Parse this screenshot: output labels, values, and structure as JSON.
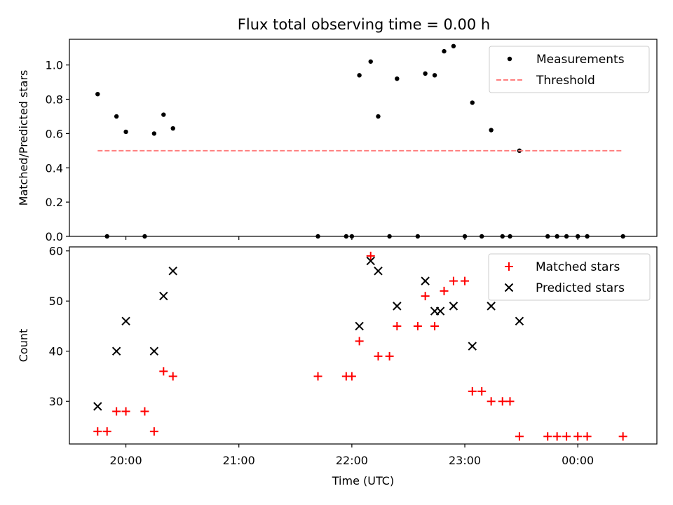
{
  "chart_data": {
    "title": "Flux total observing time = 0.00 h",
    "xlabel": "Time (UTC)",
    "x_tick_labels": [
      "20:00",
      "21:00",
      "22:00",
      "23:00",
      "00:00"
    ],
    "colors": {
      "measurements": "#000000",
      "threshold": "#ff7f7f",
      "matched": "#ff0000",
      "predicted": "#000000"
    },
    "panels": [
      {
        "type": "scatter",
        "ylabel": "Matched/Predicted stars",
        "ylim": [
          0.0,
          1.15
        ],
        "y_ticks": [
          0.0,
          0.2,
          0.4,
          0.6,
          0.8,
          1.0
        ],
        "y_tick_labels": [
          "0.0",
          "0.2",
          "0.4",
          "0.6",
          "0.8",
          "1.0"
        ],
        "legend_position": "upper right",
        "series": [
          {
            "name": "Measurements",
            "marker": "dot",
            "color": "#000000",
            "points": [
              [
                "19:45",
                0.83
              ],
              [
                "19:50",
                0.0
              ],
              [
                "19:55",
                0.7
              ],
              [
                "20:00",
                0.61
              ],
              [
                "20:10",
                0.0
              ],
              [
                "20:15",
                0.6
              ],
              [
                "20:20",
                0.71
              ],
              [
                "20:25",
                0.63
              ],
              [
                "21:42",
                0.0
              ],
              [
                "21:57",
                0.0
              ],
              [
                "22:00",
                0.0
              ],
              [
                "22:04",
                0.94
              ],
              [
                "22:10",
                1.02
              ],
              [
                "22:14",
                0.7
              ],
              [
                "22:20",
                0.0
              ],
              [
                "22:24",
                0.92
              ],
              [
                "22:35",
                0.0
              ],
              [
                "22:39",
                0.95
              ],
              [
                "22:44",
                0.94
              ],
              [
                "22:49",
                1.08
              ],
              [
                "22:54",
                1.11
              ],
              [
                "23:00",
                0.0
              ],
              [
                "23:04",
                0.78
              ],
              [
                "23:09",
                0.0
              ],
              [
                "23:14",
                0.62
              ],
              [
                "23:20",
                0.0
              ],
              [
                "23:24",
                0.0
              ],
              [
                "23:29",
                0.5
              ],
              [
                "23:44",
                0.0
              ],
              [
                "23:49",
                0.0
              ],
              [
                "23:54",
                0.0
              ],
              [
                "24:00",
                0.0
              ],
              [
                "24:05",
                0.0
              ],
              [
                "24:24",
                0.0
              ]
            ]
          },
          {
            "name": "Threshold",
            "marker": "dashed-line",
            "color": "#ff7f7f",
            "points": [
              [
                "19:45",
                0.5
              ],
              [
                "24:24",
                0.5
              ]
            ]
          }
        ]
      },
      {
        "type": "scatter",
        "ylabel": "Count",
        "ylim": [
          21.5,
          60.8
        ],
        "y_ticks": [
          30,
          40,
          50,
          60
        ],
        "y_tick_labels": [
          "30",
          "40",
          "50",
          "60"
        ],
        "legend_position": "upper right",
        "series": [
          {
            "name": "Matched stars",
            "marker": "plus",
            "color": "#ff0000",
            "points": [
              [
                "19:45",
                24
              ],
              [
                "19:50",
                24
              ],
              [
                "19:55",
                28
              ],
              [
                "20:00",
                28
              ],
              [
                "20:10",
                28
              ],
              [
                "20:15",
                24
              ],
              [
                "20:20",
                36
              ],
              [
                "20:25",
                35
              ],
              [
                "21:42",
                35
              ],
              [
                "21:57",
                35
              ],
              [
                "22:00",
                35
              ],
              [
                "22:04",
                42
              ],
              [
                "22:10",
                59
              ],
              [
                "22:14",
                39
              ],
              [
                "22:20",
                39
              ],
              [
                "22:24",
                45
              ],
              [
                "22:35",
                45
              ],
              [
                "22:39",
                51
              ],
              [
                "22:44",
                45
              ],
              [
                "22:49",
                52
              ],
              [
                "22:54",
                54
              ],
              [
                "23:00",
                54
              ],
              [
                "23:04",
                32
              ],
              [
                "23:09",
                32
              ],
              [
                "23:14",
                30
              ],
              [
                "23:20",
                30
              ],
              [
                "23:24",
                30
              ],
              [
                "23:29",
                23
              ],
              [
                "23:44",
                23
              ],
              [
                "23:49",
                23
              ],
              [
                "23:54",
                23
              ],
              [
                "24:00",
                23
              ],
              [
                "24:05",
                23
              ],
              [
                "24:24",
                23
              ]
            ]
          },
          {
            "name": "Predicted stars",
            "marker": "x",
            "color": "#000000",
            "points": [
              [
                "19:45",
                29
              ],
              [
                "19:55",
                40
              ],
              [
                "20:00",
                46
              ],
              [
                "20:15",
                40
              ],
              [
                "20:20",
                51
              ],
              [
                "20:25",
                56
              ],
              [
                "22:04",
                45
              ],
              [
                "22:10",
                58
              ],
              [
                "22:14",
                56
              ],
              [
                "22:24",
                49
              ],
              [
                "22:39",
                54
              ],
              [
                "22:44",
                48
              ],
              [
                "22:47",
                48
              ],
              [
                "22:54",
                49
              ],
              [
                "23:04",
                41
              ],
              [
                "23:14",
                49
              ],
              [
                "23:29",
                46
              ]
            ]
          }
        ]
      }
    ]
  }
}
